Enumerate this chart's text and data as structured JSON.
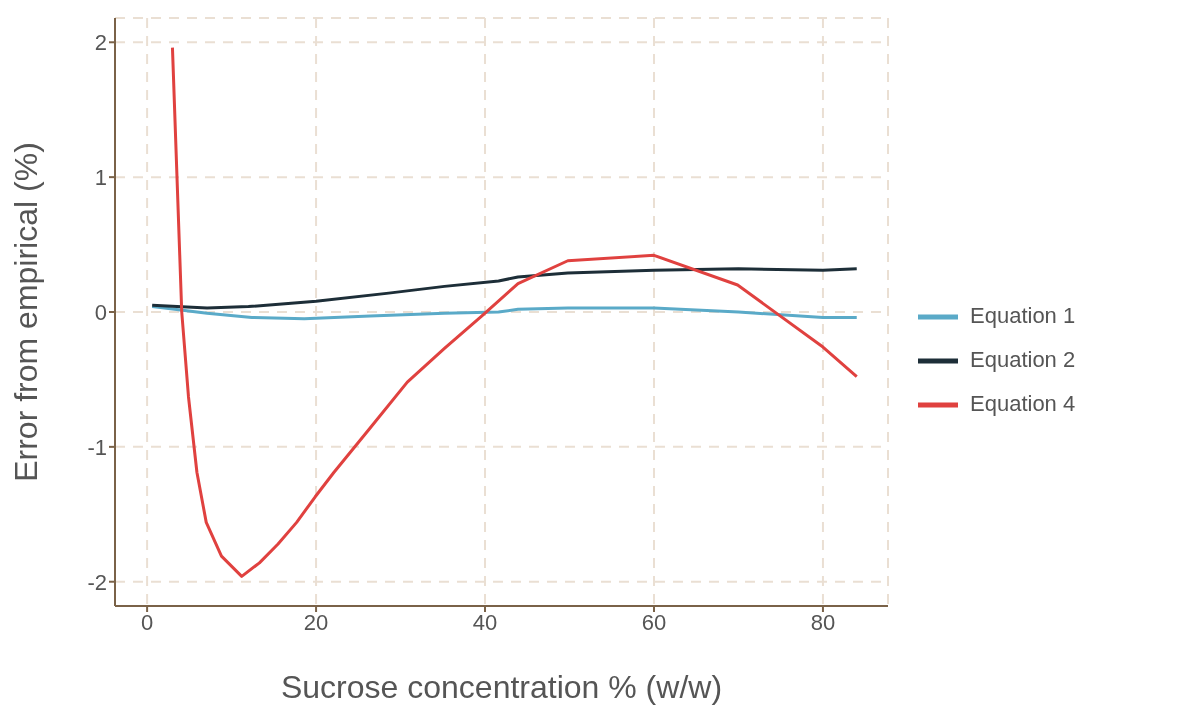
{
  "chart_data": {
    "type": "line",
    "xlabel": "Sucrose concentration % (w/w)",
    "ylabel": "Error from empirical (%)",
    "xlim": [
      -3.8,
      87.7
    ],
    "xticks": [
      0,
      20,
      40,
      60,
      80
    ],
    "ylim": [
      -2.18,
      2.18
    ],
    "yticks": [
      -2,
      -1,
      0,
      1,
      2
    ],
    "grid": true,
    "legend": "right",
    "line_style": "solid",
    "marker": "none",
    "series": [
      {
        "name": "Equation 1",
        "color": "#5aaac8",
        "x": [
          0.6,
          7.1,
          12.4,
          18.6,
          26.4,
          35.2,
          41.6,
          43.9,
          49.8,
          60,
          70,
          80,
          84
        ],
        "values": [
          0.04,
          -0.01,
          -0.04,
          -0.05,
          -0.03,
          -0.01,
          0,
          0.02,
          0.03,
          0.03,
          0,
          -0.04,
          -0.04
        ]
      },
      {
        "name": "Equation 2",
        "color": "#1d2e38",
        "x": [
          0.6,
          7.1,
          12,
          20,
          28.6,
          35.2,
          41.6,
          43.9,
          49.8,
          60,
          70,
          80,
          84
        ],
        "values": [
          0.05,
          0.03,
          0.04,
          0.08,
          0.14,
          0.19,
          0.23,
          0.26,
          0.29,
          0.31,
          0.32,
          0.31,
          0.32
        ]
      },
      {
        "name": "Equation 4",
        "color": "#e0413f",
        "x": [
          3,
          4.1,
          4.9,
          5.9,
          7,
          8.8,
          11.2,
          13.3,
          15.5,
          17.7,
          19.9,
          22.1,
          26.4,
          30.8,
          35.2,
          39.6,
          43.9,
          49.8,
          60,
          69.9,
          80,
          84
        ],
        "values": [
          1.96,
          0,
          -0.63,
          -1.19,
          -1.56,
          -1.81,
          -1.96,
          -1.86,
          -1.72,
          -1.56,
          -1.37,
          -1.19,
          -0.86,
          -0.52,
          -0.27,
          -0.03,
          0.21,
          0.38,
          0.42,
          0.2,
          -0.26,
          -0.48
        ]
      }
    ]
  }
}
